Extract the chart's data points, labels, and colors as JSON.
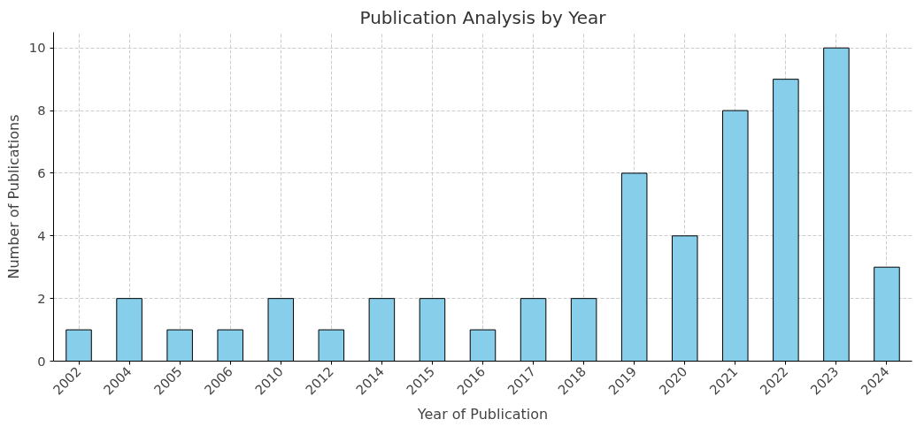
{
  "chart_data": {
    "type": "bar",
    "title": "Publication Analysis by Year",
    "xlabel": "Year of Publication",
    "ylabel": "Number of Publications",
    "categories": [
      "2002",
      "2004",
      "2005",
      "2006",
      "2010",
      "2012",
      "2014",
      "2015",
      "2016",
      "2017",
      "2018",
      "2019",
      "2020",
      "2021",
      "2022",
      "2023",
      "2024"
    ],
    "values": [
      1,
      2,
      1,
      1,
      2,
      1,
      2,
      2,
      1,
      2,
      2,
      6,
      4,
      8,
      9,
      10,
      3
    ],
    "color": "#87ceeb",
    "ylim": [
      0,
      10.5
    ],
    "yticks": [
      0,
      2,
      4,
      6,
      8,
      10
    ],
    "grid": true
  }
}
